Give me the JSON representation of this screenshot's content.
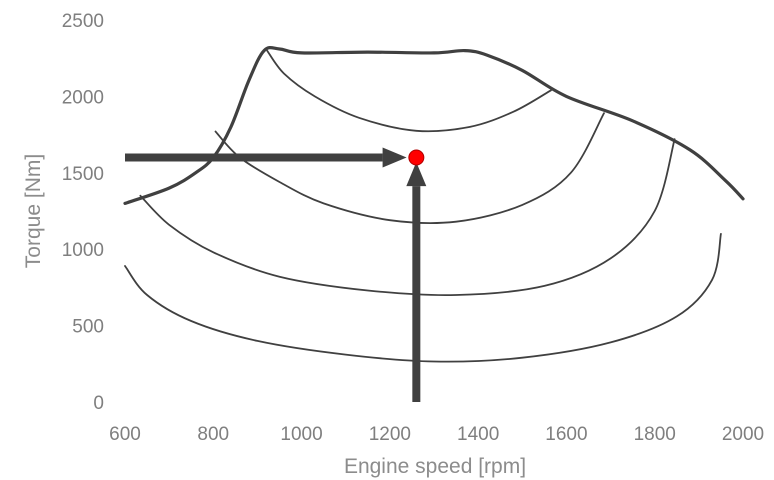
{
  "chart_data": {
    "type": "line",
    "title": "",
    "xlabel": "Engine speed [rpm]",
    "ylabel": "Torque [Nm]",
    "xlim": [
      600,
      2000
    ],
    "ylim": [
      0,
      2500
    ],
    "x_ticks": [
      600,
      800,
      1000,
      1200,
      1400,
      1600,
      1800,
      2000
    ],
    "y_ticks": [
      0,
      500,
      1000,
      1500,
      2000,
      2500
    ],
    "grid": false,
    "legend": "none",
    "series": [
      {
        "role": "full-load-curve",
        "stroke_width": 3.2,
        "points": [
          [
            600,
            1300
          ],
          [
            700,
            1400
          ],
          [
            760,
            1500
          ],
          [
            800,
            1600
          ],
          [
            840,
            1800
          ],
          [
            880,
            2100
          ],
          [
            915,
            2300
          ],
          [
            950,
            2310
          ],
          [
            1000,
            2285
          ],
          [
            1150,
            2290
          ],
          [
            1300,
            2285
          ],
          [
            1370,
            2300
          ],
          [
            1420,
            2270
          ],
          [
            1500,
            2170
          ],
          [
            1600,
            2000
          ],
          [
            1750,
            1840
          ],
          [
            1880,
            1650
          ],
          [
            1960,
            1450
          ],
          [
            2000,
            1330
          ]
        ]
      },
      {
        "role": "efficiency-contour-1",
        "stroke_width": 1.8,
        "points": [
          [
            922,
            2300
          ],
          [
            960,
            2150
          ],
          [
            1030,
            2000
          ],
          [
            1130,
            1860
          ],
          [
            1260,
            1775
          ],
          [
            1380,
            1800
          ],
          [
            1480,
            1900
          ],
          [
            1565,
            2040
          ]
        ]
      },
      {
        "role": "efficiency-contour-2",
        "stroke_width": 1.8,
        "points": [
          [
            805,
            1770
          ],
          [
            860,
            1600
          ],
          [
            950,
            1440
          ],
          [
            1050,
            1300
          ],
          [
            1200,
            1190
          ],
          [
            1350,
            1180
          ],
          [
            1500,
            1290
          ],
          [
            1610,
            1500
          ],
          [
            1685,
            1890
          ]
        ]
      },
      {
        "role": "efficiency-contour-3",
        "stroke_width": 1.8,
        "points": [
          [
            635,
            1350
          ],
          [
            700,
            1160
          ],
          [
            800,
            980
          ],
          [
            950,
            820
          ],
          [
            1150,
            730
          ],
          [
            1350,
            700
          ],
          [
            1550,
            760
          ],
          [
            1700,
            940
          ],
          [
            1800,
            1250
          ],
          [
            1845,
            1720
          ]
        ]
      },
      {
        "role": "efficiency-contour-4",
        "stroke_width": 1.8,
        "points": [
          [
            600,
            890
          ],
          [
            650,
            700
          ],
          [
            750,
            530
          ],
          [
            900,
            400
          ],
          [
            1100,
            310
          ],
          [
            1300,
            265
          ],
          [
            1500,
            290
          ],
          [
            1700,
            390
          ],
          [
            1850,
            560
          ],
          [
            1930,
            800
          ],
          [
            1950,
            1100
          ]
        ]
      }
    ],
    "operating_point": {
      "x": 1260,
      "y": 1600,
      "color": "#ff0000"
    },
    "arrows": [
      {
        "from": [
          600,
          1600
        ],
        "to": [
          1238,
          1600
        ],
        "color": "#404040"
      },
      {
        "from": [
          1260,
          0
        ],
        "to": [
          1260,
          1570
        ],
        "color": "#404040"
      }
    ]
  }
}
